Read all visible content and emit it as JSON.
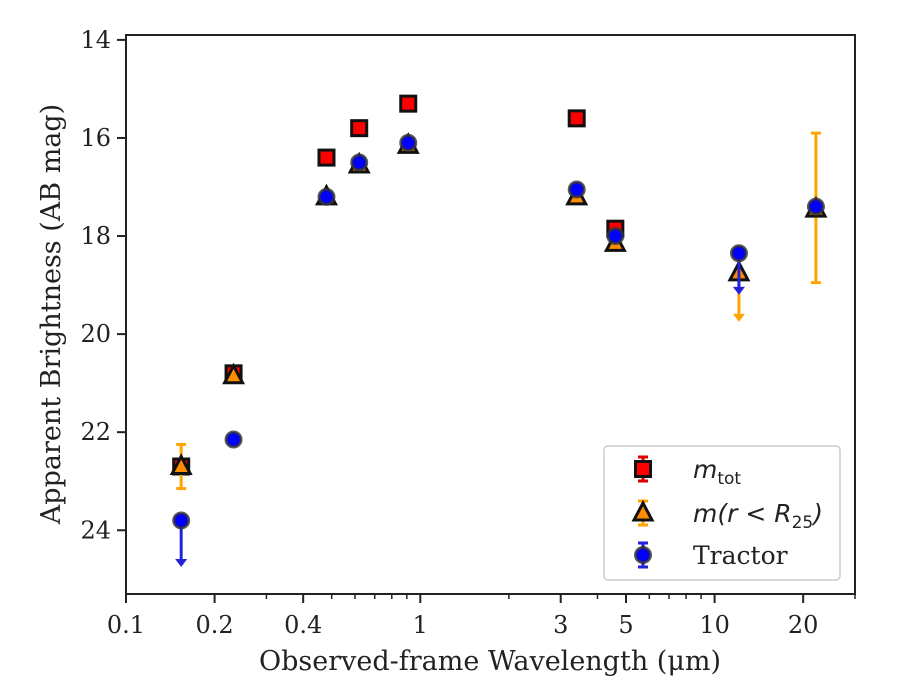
{
  "chart_data": {
    "type": "scatter",
    "xlabel": "Observed-frame Wavelength (μm)",
    "ylabel": "Apparent Brightness (AB mag)",
    "x_scale": "log",
    "xlim": [
      0.1,
      30
    ],
    "ylim": [
      25.3,
      13.9
    ],
    "y_inverted": true,
    "x_ticks": [
      0.1,
      0.2,
      0.4,
      1,
      3,
      5,
      10,
      20
    ],
    "x_tick_labels": [
      "0.1",
      "0.2",
      "0.4",
      "1",
      "3",
      "5",
      "10",
      "20"
    ],
    "y_ticks": [
      14,
      16,
      18,
      20,
      22,
      24
    ],
    "y_tick_labels": [
      "14",
      "16",
      "18",
      "20",
      "22",
      "24"
    ],
    "grid": false,
    "legend_position": "lower-right",
    "series": [
      {
        "name": "m_tot",
        "legend_label": {
          "base": "m",
          "sub": "tot"
        },
        "marker": "square",
        "face_color": "#ff0000",
        "edge_color": "#111111",
        "error_color": "#dd0000",
        "points": [
          {
            "x": 0.154,
            "y": 22.7,
            "err": 0.08
          },
          {
            "x": 0.232,
            "y": 20.8,
            "err": 0.05
          },
          {
            "x": 0.48,
            "y": 16.4,
            "err": 0.03
          },
          {
            "x": 0.62,
            "y": 15.8,
            "err": 0.03
          },
          {
            "x": 0.91,
            "y": 15.3,
            "err": 0.03
          },
          {
            "x": 3.4,
            "y": 15.6,
            "err": 0.03
          },
          {
            "x": 4.6,
            "y": 17.85,
            "err": 0.05
          }
        ]
      },
      {
        "name": "m(r < R25)",
        "legend_label": {
          "base": "m(r < R",
          "sub": "25",
          "tail": ")"
        },
        "marker": "triangle",
        "face_color": "#ff8c00",
        "edge_color": "#111111",
        "error_color": "#ffa500",
        "points": [
          {
            "x": 0.154,
            "y": 22.7,
            "err": 0.45
          },
          {
            "x": 0.232,
            "y": 20.85,
            "err": 0.05
          },
          {
            "x": 0.48,
            "y": 17.2,
            "err": 0.03
          },
          {
            "x": 0.62,
            "y": 16.55,
            "err": 0.03
          },
          {
            "x": 0.91,
            "y": 16.15,
            "err": 0.03
          },
          {
            "x": 3.4,
            "y": 17.2,
            "err": 0.03
          },
          {
            "x": 4.6,
            "y": 18.15,
            "err": 0.05
          },
          {
            "x": 12.1,
            "y": 18.75,
            "upper_limit": true,
            "arrow_to": 19.75
          },
          {
            "x": 22.1,
            "y": 17.45,
            "err_low": 15.9,
            "err_high": 18.95
          }
        ]
      },
      {
        "name": "Tractor",
        "marker": "circle",
        "face_color": "#0000ff",
        "edge_color": "#333333",
        "error_color": "#2222dd",
        "points": [
          {
            "x": 0.154,
            "y": 23.8,
            "upper_limit": true,
            "arrow_to": 24.75
          },
          {
            "x": 0.232,
            "y": 22.15,
            "err": 0.05
          },
          {
            "x": 0.48,
            "y": 17.2,
            "err": 0.03
          },
          {
            "x": 0.62,
            "y": 16.5,
            "err": 0.03
          },
          {
            "x": 0.91,
            "y": 16.1,
            "err": 0.03
          },
          {
            "x": 3.4,
            "y": 17.05,
            "err": 0.03
          },
          {
            "x": 4.6,
            "y": 18.0,
            "err": 0.05
          },
          {
            "x": 12.1,
            "y": 18.35,
            "upper_limit": true,
            "arrow_to": 19.2
          },
          {
            "x": 22.1,
            "y": 17.4,
            "err": 0.06
          }
        ]
      }
    ]
  }
}
